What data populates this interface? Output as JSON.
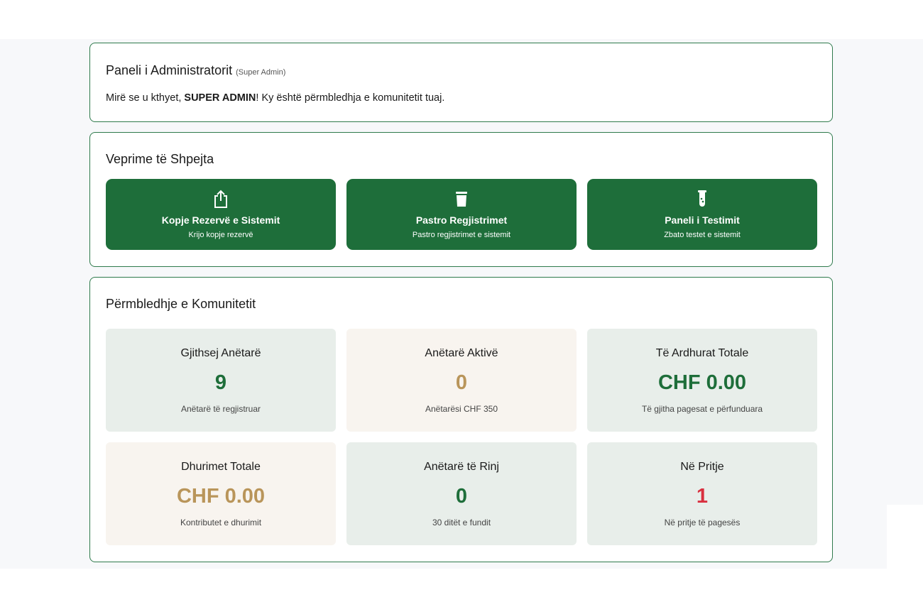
{
  "header": {
    "title": "Paneli i Administratorit",
    "role": "(Super Admin)",
    "welcome_prefix": "Mirë se u kthyet, ",
    "user": "SUPER ADMIN",
    "welcome_suffix": "! Ky është përmbledhja e komunitetit tuaj."
  },
  "quick_actions": {
    "title": "Veprime të Shpejta",
    "items": [
      {
        "icon": "share-upload-icon",
        "label": "Kopje Rezervë e Sistemit",
        "sub": "Krijo kopje rezervë"
      },
      {
        "icon": "trash-icon",
        "label": "Pastro Regjistrimet",
        "sub": "Pastro regjistrimet e sistemit"
      },
      {
        "icon": "test-tube-icon",
        "label": "Paneli i Testimit",
        "sub": "Zbato testet e sistemit"
      }
    ]
  },
  "overview": {
    "title": "Përmbledhje e Komunitetit",
    "stats": [
      {
        "title": "Gjithsej Anëtarë",
        "value": "9",
        "desc": "Anëtarë të regjistruar",
        "color": "#1e6e3a"
      },
      {
        "title": "Anëtarë Aktivë",
        "value": "0",
        "desc": "Anëtarësi CHF 350",
        "color": "#b9955a"
      },
      {
        "title": "Të Ardhurat Totale",
        "value": "CHF 0.00",
        "desc": "Të gjitha pagesat e përfunduara",
        "color": "#1e6e3a"
      },
      {
        "title": "Dhurimet Totale",
        "value": "CHF 0.00",
        "desc": "Kontributet e dhurimit",
        "color": "#b9955a"
      },
      {
        "title": "Anëtarë të Rinj",
        "value": "0",
        "desc": "30 ditët e fundit",
        "color": "#1e6e3a"
      },
      {
        "title": "Në Pritje",
        "value": "1",
        "desc": "Në pritje të pagesës",
        "color": "#d9303f"
      }
    ]
  }
}
